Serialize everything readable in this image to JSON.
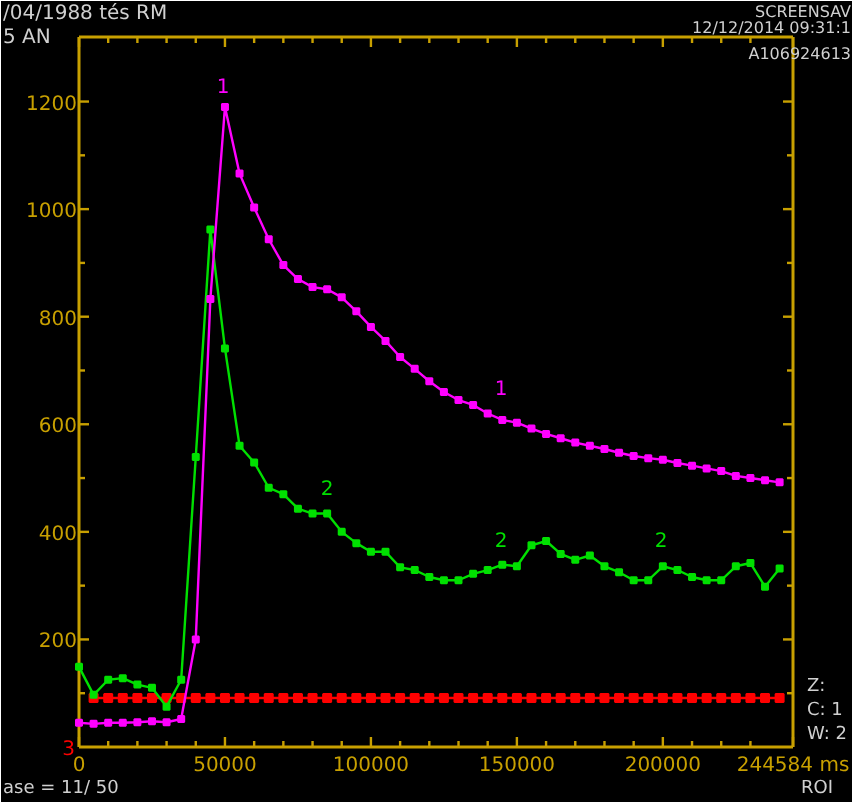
{
  "chart_data": {
    "type": "line",
    "marker": "square",
    "line_style": "solid",
    "x": [
      0,
      5000,
      10000,
      15000,
      20000,
      25000,
      30000,
      35000,
      40000,
      45000,
      50000,
      55000,
      60000,
      65000,
      70000,
      75000,
      80000,
      85000,
      90000,
      95000,
      100000,
      105000,
      110000,
      115000,
      120000,
      125000,
      130000,
      135000,
      140000,
      145000,
      150000,
      155000,
      160000,
      165000,
      170000,
      175000,
      180000,
      185000,
      190000,
      195000,
      200000,
      205000,
      210000,
      215000,
      220000,
      225000,
      230000,
      235000,
      240000
    ],
    "series": [
      {
        "color": "#ff00ff",
        "values": [
          45,
          43,
          45,
          45,
          46,
          48,
          46,
          52,
          200,
          833,
          1190,
          1066,
          1003,
          944,
          896,
          870,
          855,
          851,
          836,
          810,
          781,
          755,
          725,
          703,
          680,
          660,
          645,
          636,
          620,
          608,
          603,
          592,
          582,
          574,
          566,
          560,
          554,
          547,
          541,
          537,
          534,
          528,
          523,
          518,
          513,
          504,
          500,
          496,
          492
        ]
      },
      {
        "color": "#00e000",
        "values": [
          149,
          97,
          125,
          128,
          116,
          110,
          75,
          125,
          539,
          962,
          741,
          560,
          529,
          482,
          470,
          443,
          434,
          434,
          400,
          379,
          363,
          363,
          334,
          329,
          316,
          310,
          310,
          322,
          329,
          339,
          336,
          375,
          383,
          359,
          348,
          356,
          336,
          325,
          310,
          310,
          336,
          329,
          316,
          310,
          310,
          336,
          342,
          298,
          332
        ]
      },
      {
        "color": "#ff0000",
        "values": [
          null,
          91,
          91,
          91,
          91,
          91,
          91,
          91,
          91,
          91,
          91,
          91,
          91,
          91,
          91,
          91,
          91,
          91,
          91,
          91,
          91,
          91,
          91,
          91,
          91,
          91,
          91,
          91,
          91,
          91,
          91,
          91,
          91,
          91,
          91,
          91,
          91,
          91,
          91,
          91,
          91,
          91,
          91,
          91,
          91,
          91,
          91,
          91,
          91
        ]
      }
    ],
    "xlim": [
      0,
      244584
    ],
    "ylim": [
      0,
      1320
    ],
    "xticks": [
      0,
      {
        "value": 10000,
        "label": null
      },
      {
        "value": 20000,
        "label": null
      },
      {
        "value": 30000,
        "label": null
      },
      {
        "value": 40000,
        "label": null
      },
      50000,
      {
        "value": 60000,
        "label": null
      },
      {
        "value": 70000,
        "label": null
      },
      {
        "value": 80000,
        "label": null
      },
      {
        "value": 90000,
        "label": null
      },
      100000,
      {
        "value": 110000,
        "label": null
      },
      {
        "value": 120000,
        "label": null
      },
      {
        "value": 130000,
        "label": null
      },
      {
        "value": 140000,
        "label": null
      },
      150000,
      {
        "value": 160000,
        "label": null
      },
      {
        "value": 170000,
        "label": null
      },
      {
        "value": 180000,
        "label": null
      },
      {
        "value": 190000,
        "label": null
      },
      200000,
      {
        "value": 210000,
        "label": null
      },
      {
        "value": 220000,
        "label": null
      },
      {
        "value": 230000,
        "label": null
      },
      {
        "value": 244584,
        "label": "244584 ms"
      }
    ],
    "yticks": [
      {
        "value": 100,
        "label": null
      },
      200,
      {
        "value": 300,
        "label": null
      },
      400,
      {
        "value": 500,
        "label": null
      },
      600,
      {
        "value": 700,
        "label": null
      },
      800,
      {
        "value": 900,
        "label": null
      },
      1000,
      {
        "value": 1100,
        "label": null
      },
      1200
    ],
    "annotations": [
      "1",
      "1",
      "2",
      "2",
      "2",
      "3",
      "/04/1988 tés RM",
      "5 AN",
      "SCREENSAV",
      "12/12/2014 09:31:1",
      "A106924613",
      "Z:",
      "C: 1",
      "W: 2",
      "ROI",
      "ase = 11/ 50"
    ]
  }
}
